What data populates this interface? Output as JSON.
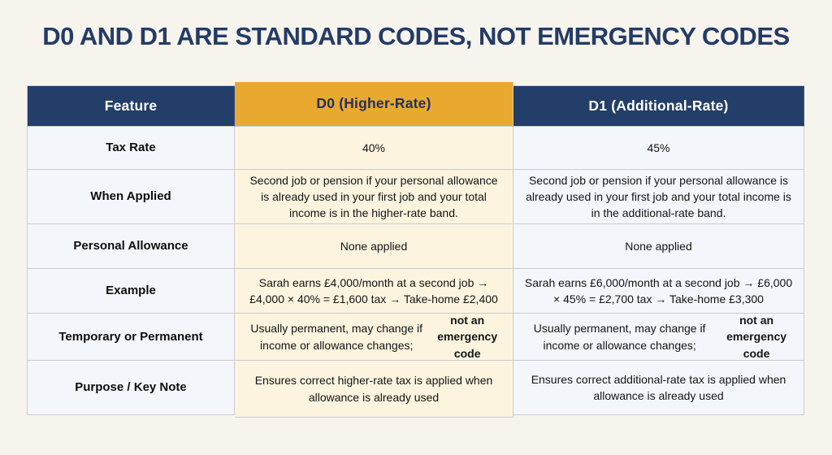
{
  "chart_data": {
    "type": "table",
    "title": "D0 AND D1 ARE STANDARD CODES, NOT EMERGENCY CODES",
    "columns": [
      "Feature",
      "D0 (Higher-Rate)",
      "D1 (Additional-Rate)"
    ],
    "rows": [
      {
        "feature": "Tax Rate",
        "d0": "40%",
        "d1": "45%"
      },
      {
        "feature": "When Applied",
        "d0": "Second job or pension if your personal allowance is already used in your first job and your total income is in the higher-rate band.",
        "d1": "Second job or pension if your personal allowance is already used in your first job and your total income is in the additional-rate band."
      },
      {
        "feature": "Personal Allowance",
        "d0": "None applied",
        "d1": "None applied"
      },
      {
        "feature": "Example",
        "d0": "Sarah earns £4,000/month at a second job → £4,000 × 40% = £1,600 tax → Take-home £2,400",
        "d1": "Sarah earns £6,000/month at a second job → £6,000 × 45% = £2,700 tax → Take-home £3,300"
      },
      {
        "feature": "Temporary or Permanent",
        "d0": "Usually permanent, may change if income or allowance changes;",
        "d0_bold": "not an emergency code",
        "d1": "Usually permanent, may change if income or allowance changes;",
        "d1_bold": "not an emergency code"
      },
      {
        "feature": "Purpose / Key Note",
        "d0": "Ensures correct higher-rate tax is applied when allowance is already used",
        "d1": "Ensures correct additional-rate tax is applied when allowance is already used"
      }
    ],
    "layout": {
      "header_style": "navy with highlighted gold D0 column",
      "grid": "3 columns x 7 rows"
    },
    "colors": {
      "background": "#F7F4EE",
      "navy_header": "#233E68",
      "gold_header": "#E9A931",
      "d0_cell_background": "#FCF4DF",
      "feature_d1_cell_background": "#F3F7FC",
      "border": "#CCCCCC",
      "title_text": "#243B67"
    }
  }
}
